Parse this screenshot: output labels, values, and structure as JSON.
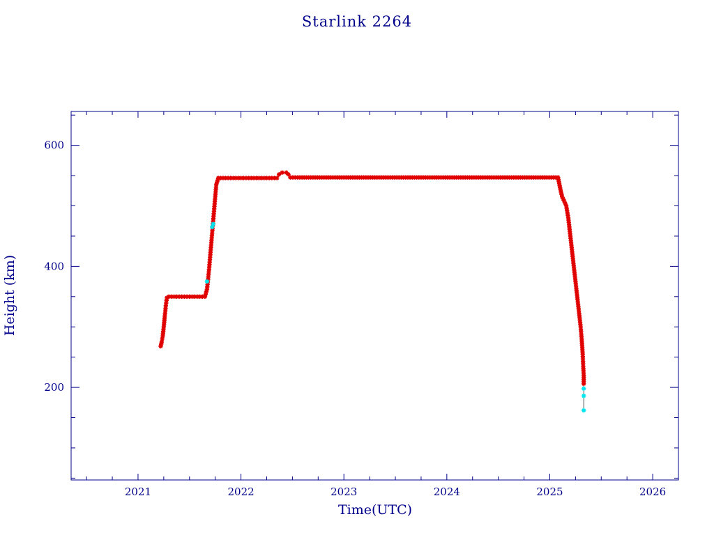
{
  "chart_data": {
    "type": "scatter",
    "title": "Starlink 2264",
    "xlabel": "Time(UTC)",
    "ylabel": "Height (km)",
    "xlim": [
      2020.35,
      2026.25
    ],
    "ylim": [
      47,
      656
    ],
    "x_ticks": [
      2021,
      2022,
      2023,
      2024,
      2025,
      2026
    ],
    "x_minor_step": 0.25,
    "y_ticks": [
      200,
      400,
      600
    ],
    "y_minor_step": 50,
    "grid": false,
    "colors": {
      "axes": "#00008b",
      "primary_points": "#e00000",
      "secondary_points": "#00e5ee",
      "connector": "#555555"
    },
    "series": [
      {
        "marker": "asterisk",
        "color": "#e00000",
        "points": [
          [
            2021.22,
            268
          ],
          [
            2021.23,
            275
          ],
          [
            2021.24,
            285
          ],
          [
            2021.25,
            300
          ],
          [
            2021.26,
            318
          ],
          [
            2021.27,
            335
          ],
          [
            2021.28,
            348
          ],
          [
            2021.3,
            350
          ],
          [
            2021.35,
            350
          ],
          [
            2021.4,
            350
          ],
          [
            2021.45,
            350
          ],
          [
            2021.5,
            350
          ],
          [
            2021.55,
            350
          ],
          [
            2021.6,
            350
          ],
          [
            2021.65,
            350
          ],
          [
            2021.67,
            362
          ],
          [
            2021.68,
            378
          ],
          [
            2021.69,
            395
          ],
          [
            2021.7,
            415
          ],
          [
            2021.71,
            435
          ],
          [
            2021.72,
            455
          ],
          [
            2021.73,
            475
          ],
          [
            2021.74,
            495
          ],
          [
            2021.75,
            515
          ],
          [
            2021.76,
            535
          ],
          [
            2021.78,
            546
          ],
          [
            2021.85,
            546
          ],
          [
            2021.95,
            546
          ],
          [
            2022.05,
            546
          ],
          [
            2022.15,
            546
          ],
          [
            2022.25,
            546
          ],
          [
            2022.35,
            546
          ],
          [
            2022.37,
            552
          ],
          [
            2022.4,
            555
          ],
          [
            2022.44,
            555
          ],
          [
            2022.46,
            552
          ],
          [
            2022.48,
            547
          ],
          [
            2022.55,
            547
          ],
          [
            2022.7,
            547
          ],
          [
            2022.85,
            547
          ],
          [
            2023.0,
            547
          ],
          [
            2023.15,
            547
          ],
          [
            2023.3,
            547
          ],
          [
            2023.45,
            547
          ],
          [
            2023.6,
            547
          ],
          [
            2023.75,
            547
          ],
          [
            2023.9,
            547
          ],
          [
            2024.05,
            547
          ],
          [
            2024.2,
            547
          ],
          [
            2024.35,
            547
          ],
          [
            2024.5,
            547
          ],
          [
            2024.65,
            547
          ],
          [
            2024.8,
            547
          ],
          [
            2024.95,
            547
          ],
          [
            2025.08,
            547
          ],
          [
            2025.1,
            530
          ],
          [
            2025.12,
            515
          ],
          [
            2025.14,
            508
          ],
          [
            2025.16,
            500
          ],
          [
            2025.18,
            480
          ],
          [
            2025.2,
            450
          ],
          [
            2025.22,
            420
          ],
          [
            2025.24,
            390
          ],
          [
            2025.26,
            360
          ],
          [
            2025.28,
            330
          ],
          [
            2025.3,
            300
          ],
          [
            2025.31,
            280
          ],
          [
            2025.32,
            255
          ],
          [
            2025.325,
            235
          ],
          [
            2025.33,
            220
          ],
          [
            2025.33,
            206
          ]
        ]
      },
      {
        "marker": "asterisk",
        "color": "#00e5ee",
        "points": [
          [
            2021.67,
            375
          ],
          [
            2021.72,
            465
          ],
          [
            2021.73,
            470
          ],
          [
            2025.33,
            198
          ],
          [
            2025.33,
            186
          ],
          [
            2025.33,
            162
          ]
        ]
      }
    ]
  }
}
